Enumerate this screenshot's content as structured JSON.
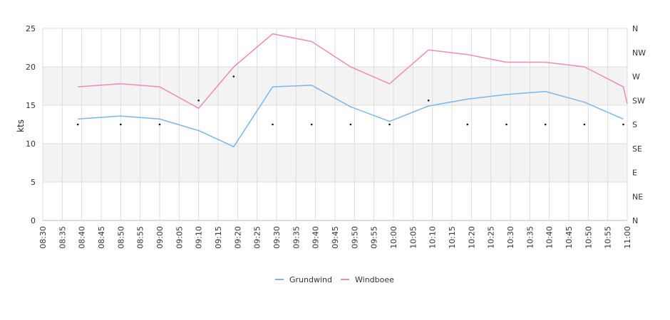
{
  "chart_data": {
    "type": "line",
    "ylabel": "kts",
    "ylim": [
      0,
      25
    ],
    "y_ticks": [
      "0",
      "5",
      "10",
      "15",
      "20",
      "25"
    ],
    "y2_ticks": [
      "N",
      "NE",
      "E",
      "SE",
      "S",
      "SW",
      "W",
      "NW",
      "N"
    ],
    "x_ticks": [
      "08:30",
      "08:35",
      "08:40",
      "08:45",
      "08:50",
      "08:55",
      "09:00",
      "09:05",
      "09:10",
      "09:15",
      "09:20",
      "09:25",
      "09:30",
      "09:35",
      "09:40",
      "09:45",
      "09:50",
      "09:55",
      "10:00",
      "10:05",
      "10:10",
      "10:15",
      "10:20",
      "10:25",
      "10:30",
      "10:35",
      "10:40",
      "10:45",
      "10:50",
      "10:55",
      "11:00"
    ],
    "x_start": "08:30",
    "x_end": "11:00",
    "grid": true,
    "bands": [
      [
        5,
        10
      ],
      [
        15,
        20
      ]
    ],
    "legend_position": "bottom-center",
    "series": [
      {
        "name": "Grundwind",
        "color": "#7ab6ee",
        "points": [
          [
            "08:39",
            13.2
          ],
          [
            "08:50",
            13.6
          ],
          [
            "09:00",
            13.2
          ],
          [
            "09:10",
            11.7
          ],
          [
            "09:19",
            9.6
          ],
          [
            "09:29",
            17.4
          ],
          [
            "09:39",
            17.6
          ],
          [
            "09:49",
            14.8
          ],
          [
            "09:59",
            12.9
          ],
          [
            "10:09",
            14.9
          ],
          [
            "10:19",
            15.8
          ],
          [
            "10:29",
            16.4
          ],
          [
            "10:39",
            16.8
          ],
          [
            "10:49",
            15.4
          ],
          [
            "10:59",
            13.2
          ]
        ]
      },
      {
        "name": "Windboee",
        "color": "#ee8ab8",
        "points": [
          [
            "08:39",
            17.4
          ],
          [
            "08:50",
            17.8
          ],
          [
            "09:00",
            17.4
          ],
          [
            "09:10",
            14.6
          ],
          [
            "09:19",
            20.0
          ],
          [
            "09:29",
            24.3
          ],
          [
            "09:39",
            23.3
          ],
          [
            "09:49",
            20.0
          ],
          [
            "09:59",
            17.8
          ],
          [
            "10:09",
            22.2
          ],
          [
            "10:19",
            21.6
          ],
          [
            "10:29",
            20.6
          ],
          [
            "10:39",
            20.6
          ],
          [
            "10:49",
            20.0
          ],
          [
            "10:59",
            17.4
          ],
          [
            "11:00",
            15.2
          ]
        ]
      }
    ],
    "direction_markers": {
      "color": "#111111",
      "points": [
        [
          "08:39",
          "S"
        ],
        [
          "08:50",
          "S"
        ],
        [
          "09:00",
          "S"
        ],
        [
          "09:10",
          "SW"
        ],
        [
          "09:19",
          "W"
        ],
        [
          "09:29",
          "S"
        ],
        [
          "09:39",
          "S"
        ],
        [
          "09:49",
          "S"
        ],
        [
          "09:59",
          "S"
        ],
        [
          "10:09",
          "SW"
        ],
        [
          "10:19",
          "S"
        ],
        [
          "10:29",
          "S"
        ],
        [
          "10:39",
          "S"
        ],
        [
          "10:49",
          "S"
        ],
        [
          "10:59",
          "S"
        ]
      ]
    }
  }
}
